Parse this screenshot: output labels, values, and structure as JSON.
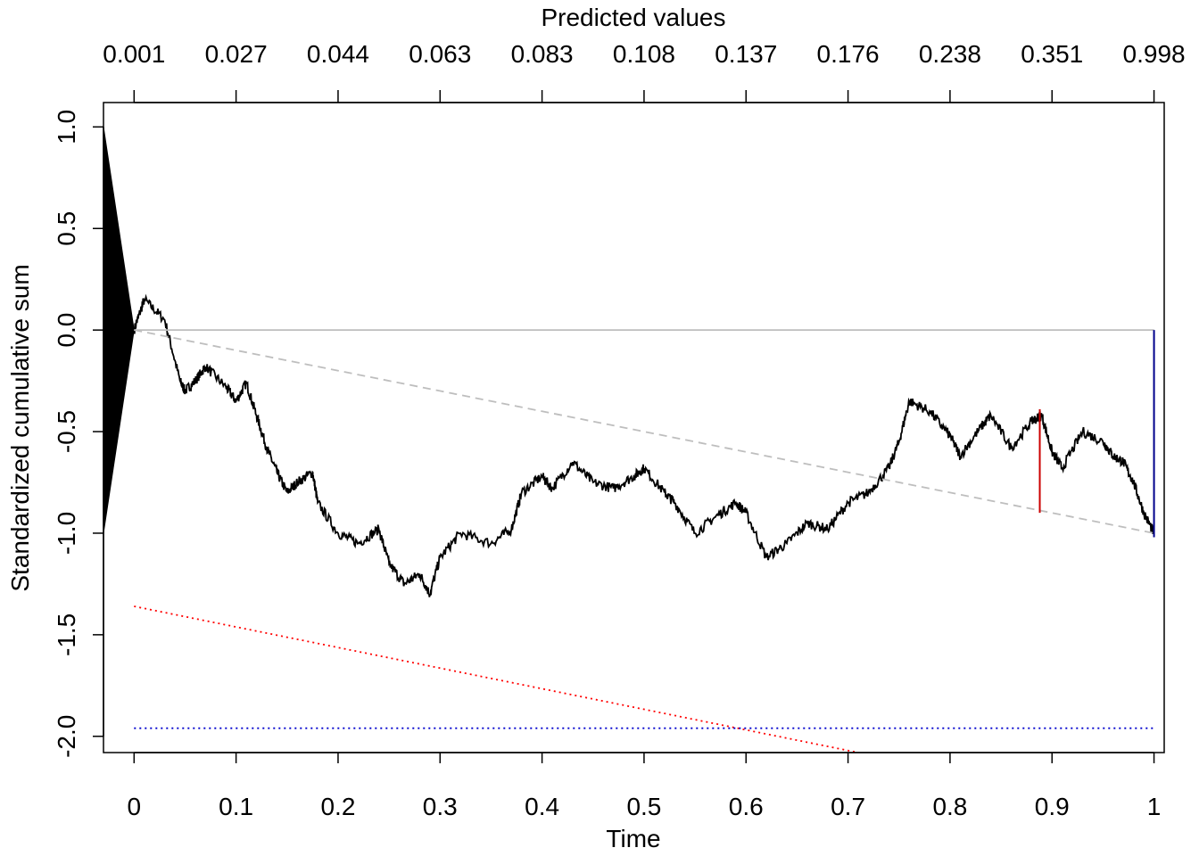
{
  "chart_data": {
    "type": "line",
    "xlabel": "Time",
    "ylabel": "Standardized cumulative sum",
    "top_axis_title": "Predicted values",
    "xlim": [
      -0.03,
      1.01
    ],
    "ylim": [
      -2.08,
      1.12
    ],
    "x_ticks": [
      0,
      0.1,
      0.2,
      0.3,
      0.4,
      0.5,
      0.6,
      0.7,
      0.8,
      0.9,
      1
    ],
    "x_tick_labels": [
      "0",
      "0.1",
      "0.2",
      "0.3",
      "0.4",
      "0.5",
      "0.6",
      "0.7",
      "0.8",
      "0.9",
      "1"
    ],
    "y_ticks": [
      1.0,
      0.5,
      0.0,
      -0.5,
      -1.0,
      -1.5,
      -2.0
    ],
    "y_tick_labels": [
      "1.0",
      "0.5",
      "0.0",
      "-0.5",
      "-1.0",
      "-1.5",
      "-2.0"
    ],
    "top_axis": {
      "positions": [
        0,
        0.1,
        0.2,
        0.3,
        0.4,
        0.5,
        0.6,
        0.7,
        0.8,
        0.9,
        1
      ],
      "labels": [
        "0.001",
        "0.027",
        "0.044",
        "0.063",
        "0.083",
        "0.108",
        "0.137",
        "0.176",
        "0.238",
        "0.351",
        "0.998"
      ]
    },
    "grid": false,
    "legend": "none",
    "series": [
      {
        "role": "cumulative-sum",
        "color": "#000000",
        "style": "solid",
        "x": [
          0,
          0.01,
          0.03,
          0.045,
          0.05,
          0.06,
          0.07,
          0.09,
          0.1,
          0.11,
          0.12,
          0.13,
          0.14,
          0.15,
          0.16,
          0.175,
          0.18,
          0.2,
          0.22,
          0.24,
          0.25,
          0.265,
          0.28,
          0.29,
          0.3,
          0.32,
          0.35,
          0.37,
          0.38,
          0.4,
          0.41,
          0.43,
          0.45,
          0.47,
          0.49,
          0.5,
          0.52,
          0.53,
          0.55,
          0.57,
          0.59,
          0.6,
          0.62,
          0.64,
          0.66,
          0.68,
          0.7,
          0.72,
          0.74,
          0.75,
          0.76,
          0.78,
          0.8,
          0.81,
          0.83,
          0.84,
          0.86,
          0.88,
          0.89,
          0.9,
          0.91,
          0.93,
          0.95,
          0.96,
          0.97,
          0.98,
          0.99,
          1
        ],
        "y": [
          0,
          0.15,
          0.05,
          -0.25,
          -0.3,
          -0.25,
          -0.18,
          -0.28,
          -0.35,
          -0.26,
          -0.42,
          -0.58,
          -0.7,
          -0.8,
          -0.75,
          -0.7,
          -0.85,
          -1.0,
          -1.05,
          -0.98,
          -1.15,
          -1.25,
          -1.2,
          -1.3,
          -1.12,
          -1.0,
          -1.05,
          -0.98,
          -0.8,
          -0.72,
          -0.78,
          -0.65,
          -0.75,
          -0.78,
          -0.72,
          -0.68,
          -0.8,
          -0.85,
          -1.0,
          -0.92,
          -0.85,
          -0.9,
          -1.12,
          -1.05,
          -0.95,
          -0.98,
          -0.85,
          -0.8,
          -0.68,
          -0.55,
          -0.35,
          -0.4,
          -0.52,
          -0.62,
          -0.48,
          -0.42,
          -0.58,
          -0.45,
          -0.42,
          -0.6,
          -0.68,
          -0.5,
          -0.55,
          -0.62,
          -0.65,
          -0.75,
          -0.9,
          -1.0
        ]
      },
      {
        "role": "zero-reference",
        "color": "#bebebe",
        "style": "solid",
        "x": [
          0,
          1
        ],
        "y": [
          0,
          0
        ]
      },
      {
        "role": "expected-trend",
        "color": "#bebebe",
        "style": "dashed",
        "x": [
          0,
          1
        ],
        "y": [
          0,
          -1.0
        ]
      },
      {
        "role": "red-bound",
        "color": "#ff0000",
        "style": "dotted",
        "x": [
          0,
          0.71
        ],
        "y": [
          -1.36,
          -2.08
        ]
      },
      {
        "role": "blue-bound",
        "color": "#0000cd",
        "style": "dotted",
        "x": [
          0,
          1
        ],
        "y": [
          -1.96,
          -1.96
        ]
      }
    ],
    "markers": [
      {
        "role": "red-max-deviation",
        "color": "#cc0000",
        "x": 0.888,
        "y1": -0.39,
        "y2": -0.9
      },
      {
        "role": "blue-deviation",
        "color": "#00008b",
        "x": 1.0,
        "y1": 0.0,
        "y2": -1.02
      }
    ],
    "left_wedge": {
      "color": "#000000",
      "x_start": -0.03,
      "x_end": 0,
      "y_top": 1.0,
      "y_bottom": -1.0
    }
  }
}
